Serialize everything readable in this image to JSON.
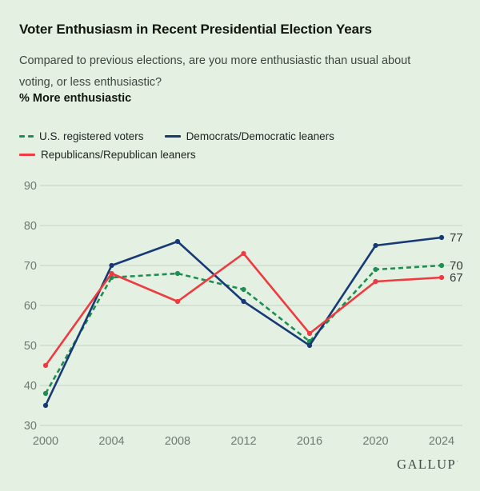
{
  "header": {
    "title": "Voter Enthusiasm in Recent Presidential Election Years",
    "subtitle_line1": "Compared to previous elections, are you more enthusiastic than usual about",
    "subtitle_line2": "voting, or less enthusiastic?",
    "measure_label": "% More enthusiastic"
  },
  "chart_data": {
    "type": "line",
    "title": "Voter Enthusiasm in Recent Presidential Election Years",
    "measure": "% More enthusiastic",
    "categories": [
      "2000",
      "2004",
      "2008",
      "2012",
      "2016",
      "2020",
      "2024"
    ],
    "series": [
      {
        "name": "U.S. registered voters",
        "color": "#1e8e52",
        "dashed": true,
        "values": [
          38,
          67,
          68,
          64,
          51,
          69,
          70
        ],
        "end_label": "70"
      },
      {
        "name": "Democrats/Democratic leaners",
        "color": "#173a75",
        "dashed": false,
        "values": [
          35,
          70,
          76,
          61,
          50,
          75,
          77
        ],
        "end_label": "77"
      },
      {
        "name": "Republicans/Republican leaners",
        "color": "#ee3b40",
        "dashed": false,
        "values": [
          45,
          68,
          61,
          73,
          53,
          66,
          67
        ],
        "end_label": "67"
      }
    ],
    "yticks": [
      90,
      80,
      70,
      60,
      50,
      40,
      30
    ],
    "ylim": [
      30,
      95
    ],
    "grid": true,
    "legend_position": "top",
    "xlabel": "",
    "ylabel": "% More enthusiastic"
  },
  "colors": {
    "background": "#e4f0e2",
    "gridline": "#ccd8ca",
    "axis_text": "#6f7a73",
    "value_label": "#343b38"
  },
  "footer": {
    "brand": "GALLUP",
    "trademark": "′"
  }
}
